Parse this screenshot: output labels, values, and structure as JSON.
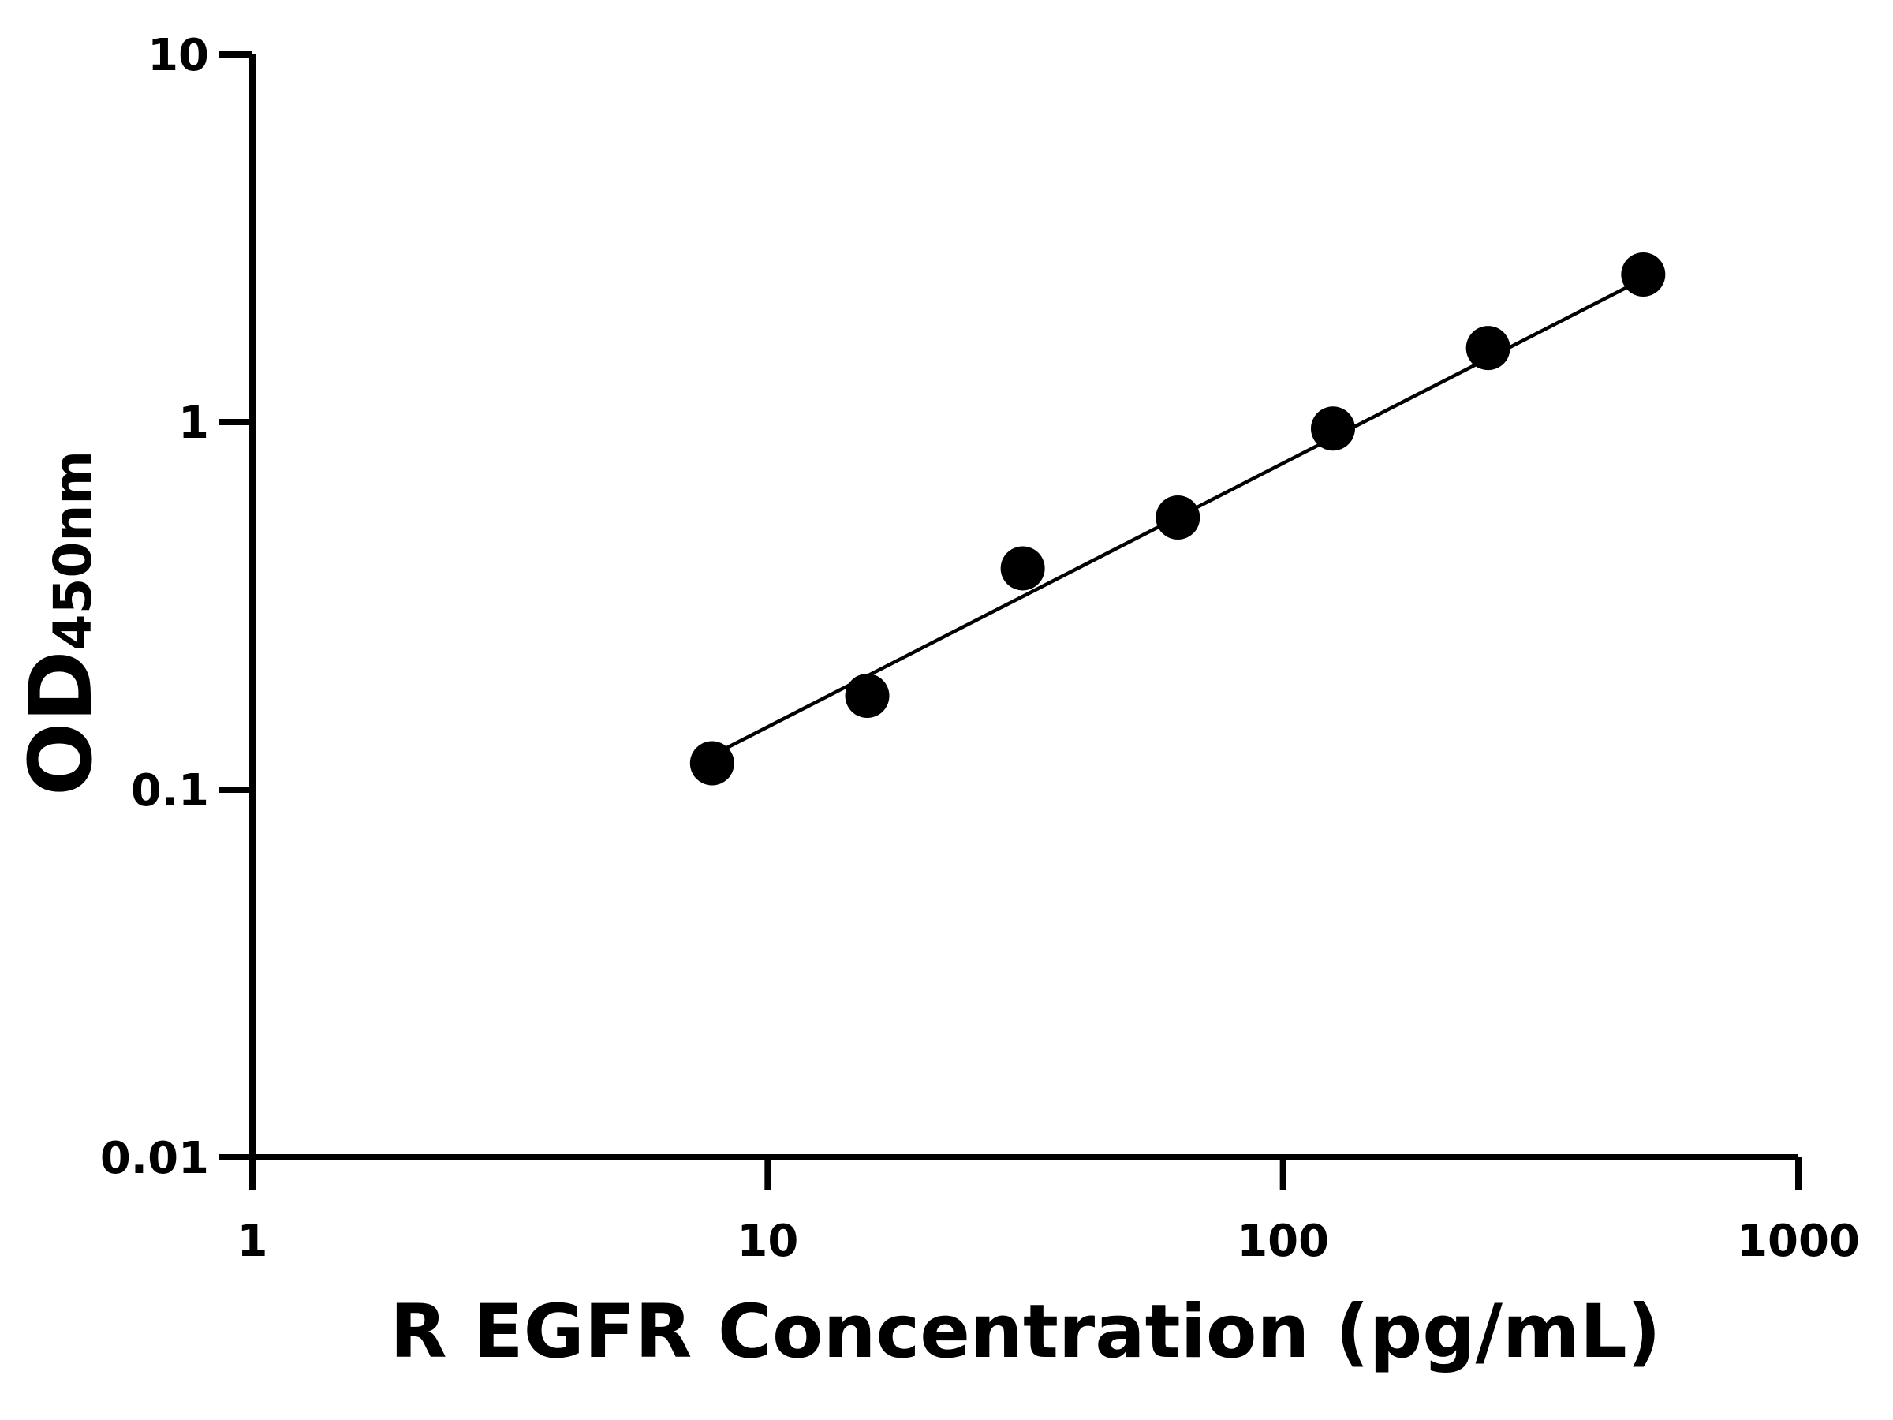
{
  "chart_data": {
    "type": "scatter",
    "xlabel": "R EGFR Concentration (pg/mL)",
    "ylabel": {
      "main": "OD",
      "sub": "450nm"
    },
    "x": [
      7.8,
      15.6,
      31.25,
      62.5,
      125,
      250,
      500
    ],
    "values": [
      0.118,
      0.18,
      0.4,
      0.55,
      0.96,
      1.59,
      2.52
    ],
    "fit": {
      "x": [
        7.8,
        500
      ],
      "values": [
        0.124,
        2.45
      ]
    },
    "color": "#000000",
    "xlog": true,
    "ylog": true,
    "xlim": [
      1,
      1000
    ],
    "xticks": [
      1,
      10,
      100,
      1000
    ],
    "ylim": [
      0.01,
      10
    ],
    "yticks": [
      0.01,
      0.1,
      1,
      10
    ]
  }
}
